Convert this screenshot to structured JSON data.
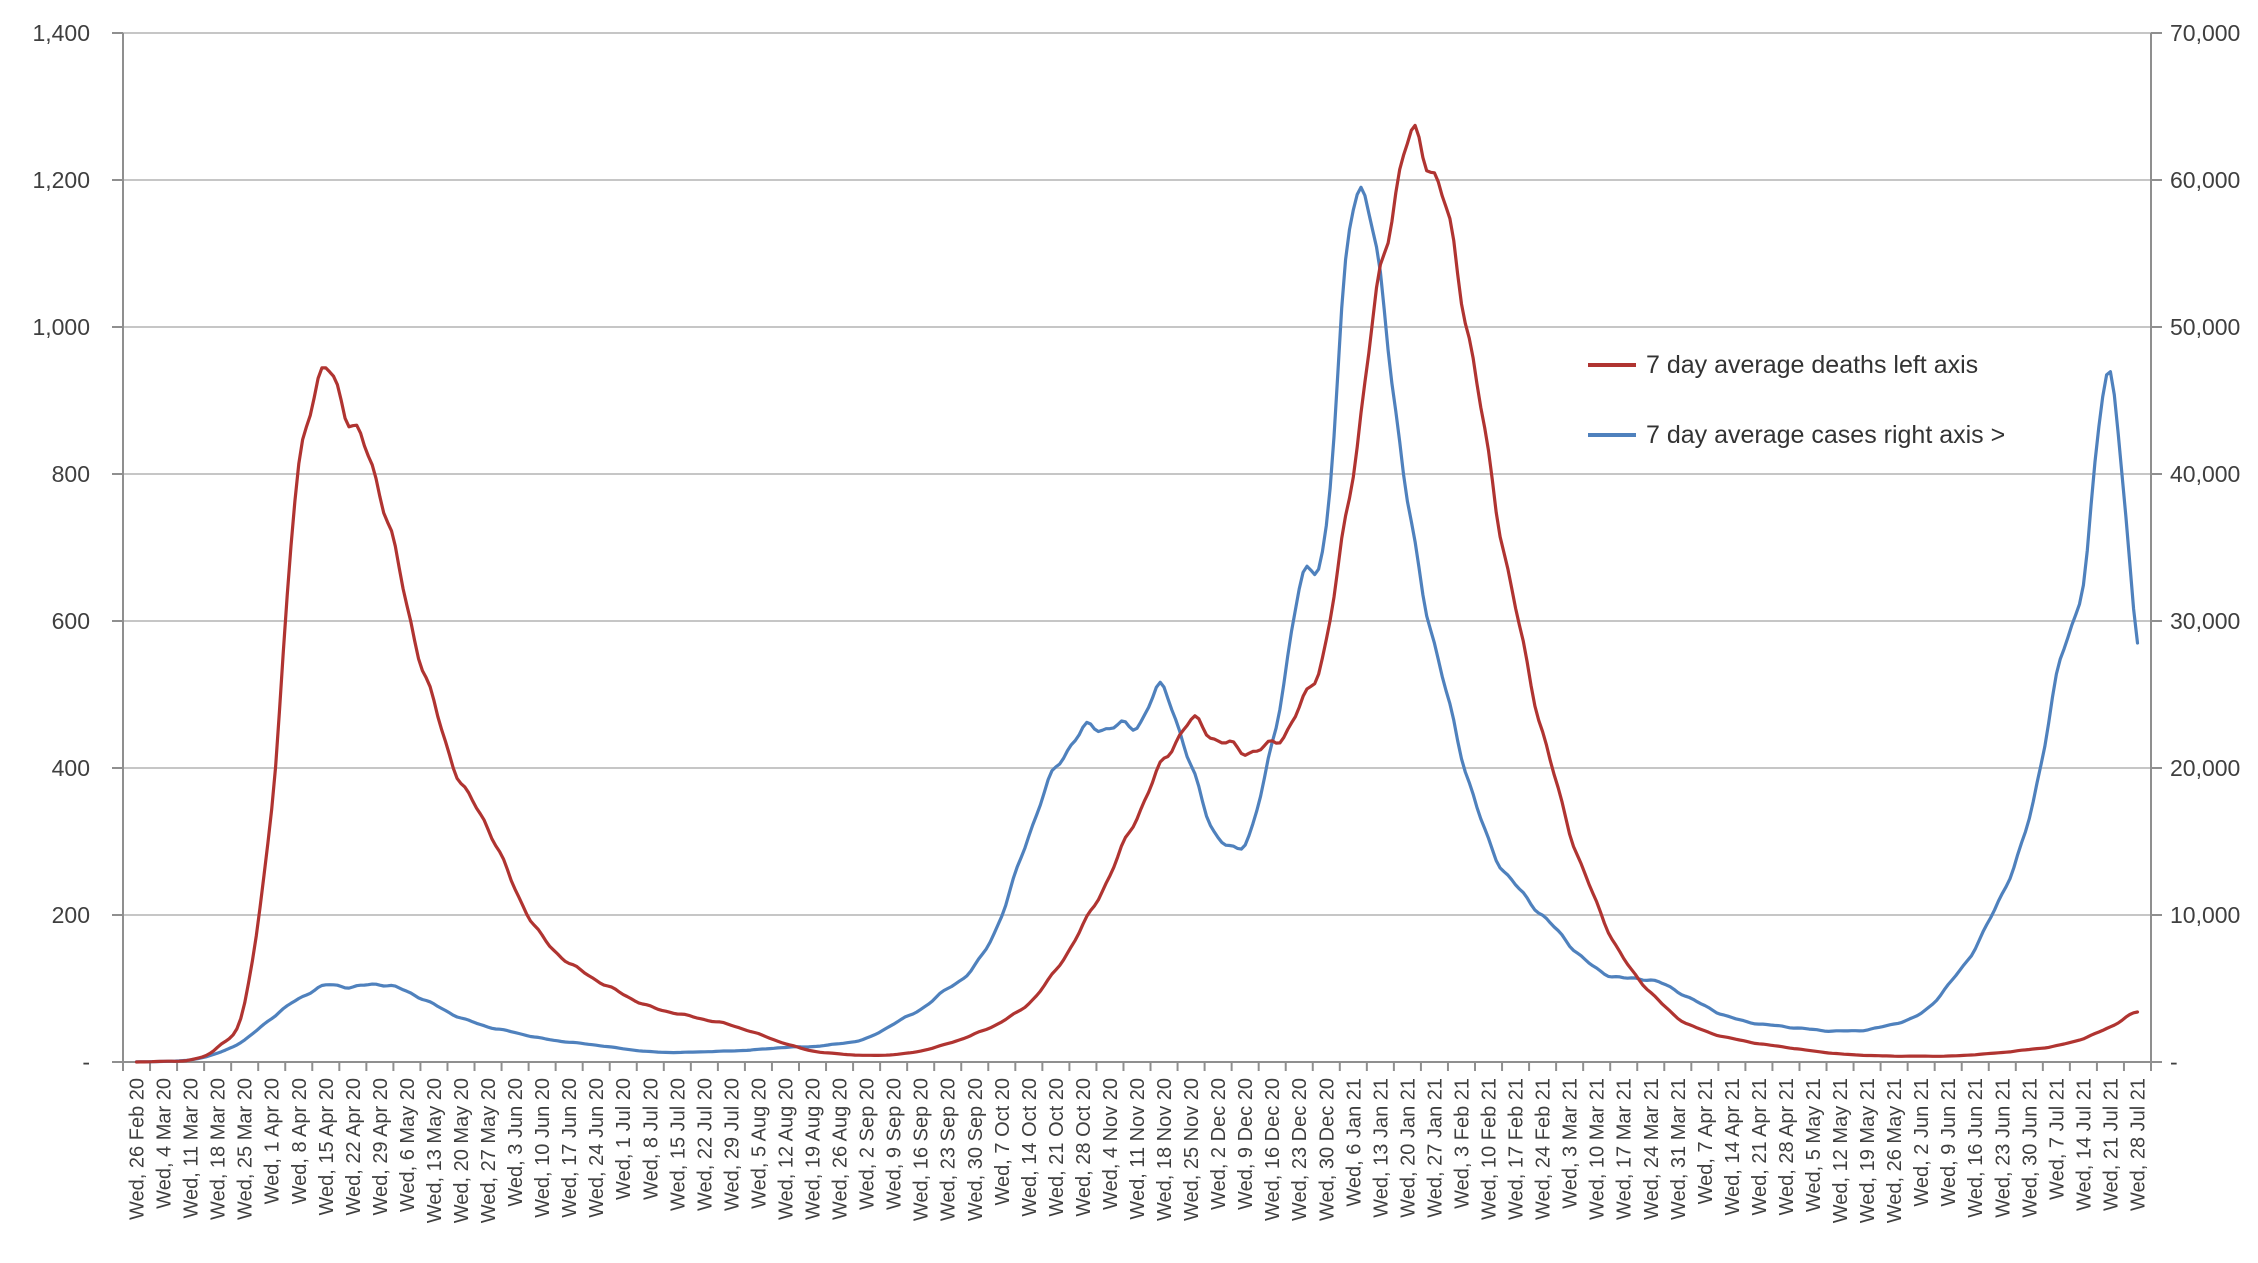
{
  "chart_data": {
    "type": "line",
    "title": "",
    "x_labels": [
      "Wed, 26 Feb 20",
      "Wed, 4 Mar 20",
      "Wed, 11 Mar 20",
      "Wed, 18 Mar 20",
      "Wed, 25 Mar 20",
      "Wed, 1 Apr 20",
      "Wed, 8 Apr 20",
      "Wed, 15 Apr 20",
      "Wed, 22 Apr 20",
      "Wed, 29 Apr 20",
      "Wed, 6 May 20",
      "Wed, 13 May 20",
      "Wed, 20 May 20",
      "Wed, 27 May 20",
      "Wed, 3 Jun 20",
      "Wed, 10 Jun 20",
      "Wed, 17 Jun 20",
      "Wed, 24 Jun 20",
      "Wed, 1 Jul 20",
      "Wed, 8 Jul 20",
      "Wed, 15 Jul 20",
      "Wed, 22 Jul 20",
      "Wed, 29 Jul 20",
      "Wed, 5 Aug 20",
      "Wed, 12 Aug 20",
      "Wed, 19 Aug 20",
      "Wed, 26 Aug 20",
      "Wed, 2 Sep 20",
      "Wed, 9 Sep 20",
      "Wed, 16 Sep 20",
      "Wed, 23 Sep 20",
      "Wed, 30 Sep 20",
      "Wed, 7 Oct 20",
      "Wed, 14 Oct 20",
      "Wed, 21 Oct 20",
      "Wed, 28 Oct 20",
      "Wed, 4 Nov 20",
      "Wed, 11 Nov 20",
      "Wed, 18 Nov 20",
      "Wed, 25 Nov 20",
      "Wed, 2 Dec 20",
      "Wed, 9 Dec 20",
      "Wed, 16 Dec 20",
      "Wed, 23 Dec 20",
      "Wed, 30 Dec 20",
      "Wed, 6 Jan 21",
      "Wed, 13 Jan 21",
      "Wed, 20 Jan 21",
      "Wed, 27 Jan 21",
      "Wed, 3 Feb 21",
      "Wed, 10 Feb 21",
      "Wed, 17 Feb 21",
      "Wed, 24 Feb 21",
      "Wed, 3 Mar 21",
      "Wed, 10 Mar 21",
      "Wed, 17 Mar 21",
      "Wed, 24 Mar 21",
      "Wed, 31 Mar 21",
      "Wed, 7 Apr 21",
      "Wed, 14 Apr 21",
      "Wed, 21 Apr 21",
      "Wed, 28 Apr 21",
      "Wed, 5 May 21",
      "Wed, 12 May 21",
      "Wed, 19 May 21",
      "Wed, 26 May 21",
      "Wed, 2 Jun 21",
      "Wed, 9 Jun 21",
      "Wed, 16 Jun 21",
      "Wed, 23 Jun 21",
      "Wed, 30 Jun 21",
      "Wed, 7 Jul 21",
      "Wed, 14 Jul 21",
      "Wed, 21 Jul 21",
      "Wed, 28 Jul 21"
    ],
    "left_axis": {
      "min": 0,
      "max": 1400,
      "step": 200,
      "tick_labels_top_to_bottom": [
        "1,400",
        "1,200",
        "1,000",
        "800",
        "600",
        "400",
        "200",
        "-"
      ]
    },
    "right_axis": {
      "min": 0,
      "max": 70000,
      "step": 10000,
      "tick_labels_top_to_bottom": [
        "70,000",
        "60,000",
        "50,000",
        "40,000",
        "30,000",
        "20,000",
        "10,000",
        "-"
      ]
    },
    "series": [
      {
        "name": "7 day average deaths left axis",
        "axis": "left",
        "color": "#B03431",
        "values": [
          0,
          1,
          3,
          20,
          80,
          350,
          810,
          935,
          865,
          780,
          620,
          485,
          380,
          320,
          235,
          170,
          135,
          112,
          92,
          75,
          66,
          58,
          50,
          38,
          25,
          15,
          11,
          9,
          10,
          15,
          25,
          38,
          55,
          80,
          125,
          185,
          255,
          335,
          410,
          462,
          438,
          424,
          432,
          480,
          575,
          810,
          1070,
          1245,
          1210,
          1050,
          820,
          615,
          450,
          315,
          215,
          140,
          95,
          60,
          42,
          32,
          25,
          20,
          15,
          11,
          9,
          8,
          8,
          8,
          10,
          13,
          17,
          22,
          32,
          48,
          68
        ]
      },
      {
        "name": "7 day average cases right axis >",
        "axis": "right",
        "color": "#4F81BD",
        "values": [
          10,
          40,
          150,
          600,
          1500,
          3000,
          4300,
          5200,
          5100,
          5300,
          4800,
          3900,
          3000,
          2400,
          2000,
          1600,
          1350,
          1150,
          900,
          700,
          650,
          700,
          750,
          850,
          1000,
          1050,
          1250,
          1600,
          2600,
          3600,
          5000,
          6500,
          10000,
          15500,
          20000,
          22500,
          22800,
          23000,
          25300,
          20000,
          15300,
          15000,
          21500,
          32000,
          36500,
          59000,
          53000,
          38000,
          28500,
          21000,
          15000,
          12000,
          10000,
          8000,
          6300,
          5700,
          5600,
          4800,
          3800,
          3000,
          2600,
          2400,
          2200,
          2100,
          2200,
          2600,
          3300,
          5200,
          7800,
          11500,
          16500,
          26000,
          33000,
          47000,
          28500
        ]
      }
    ],
    "grid": true,
    "legend_position": "mid-right-inside"
  },
  "colors": {
    "grid": "#C6C6C6",
    "axis": "#8F8F8F",
    "tick_text": "#3F3F3F",
    "legend_text": "#333333",
    "background": "#FFFFFF"
  }
}
